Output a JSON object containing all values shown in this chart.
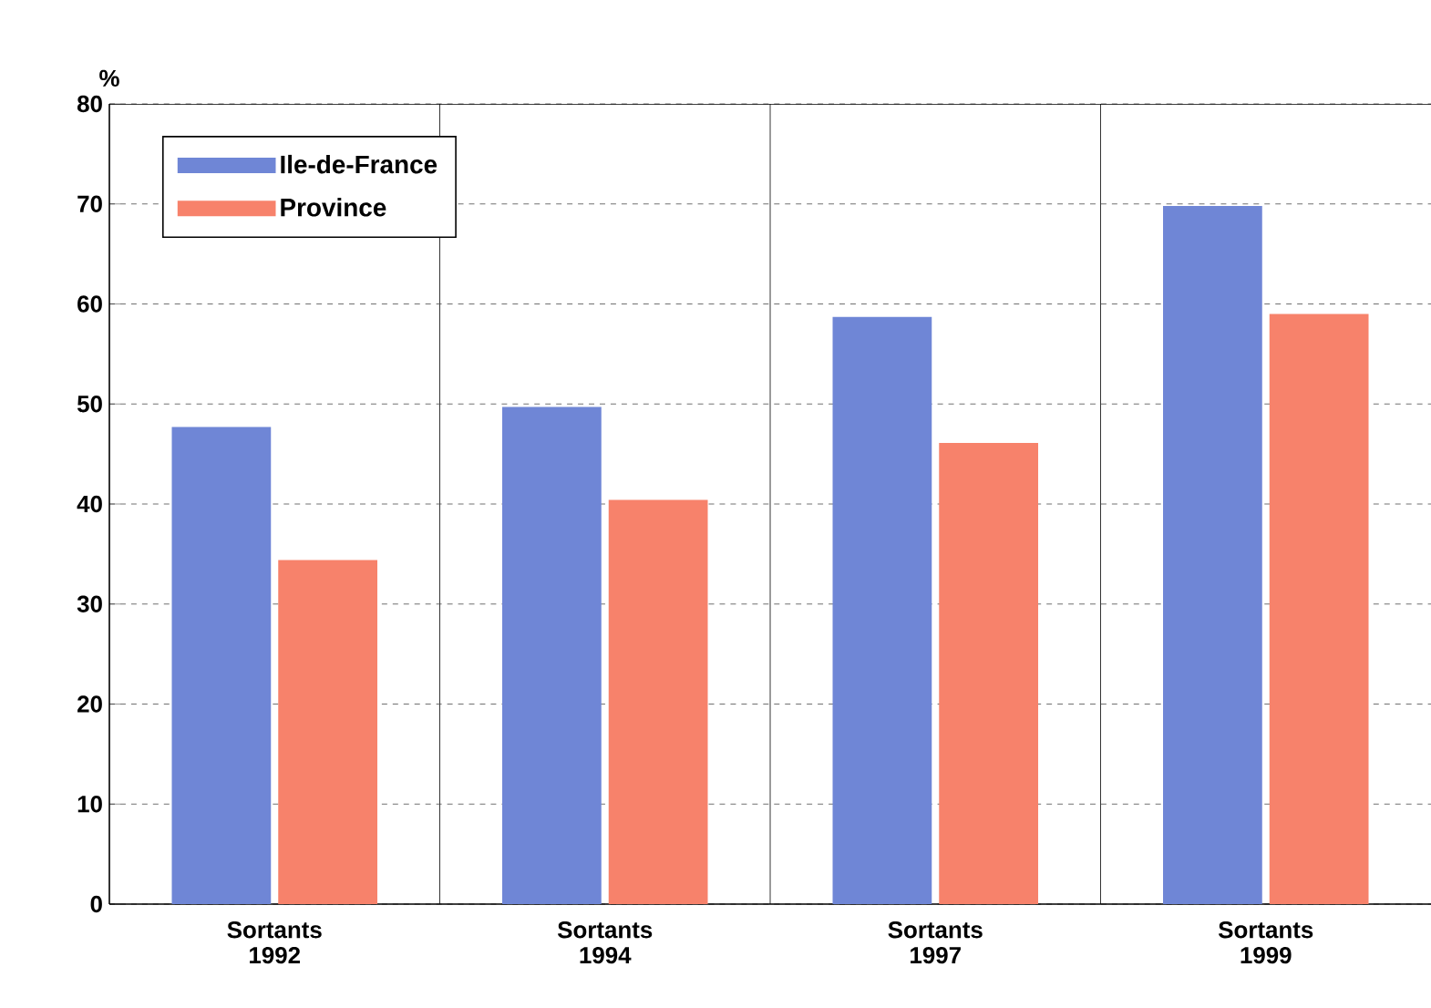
{
  "chart_data": {
    "type": "bar",
    "ylabel": "%",
    "categories": [
      "Sortants 1992",
      "Sortants 1994",
      "Sortants 1997",
      "Sortants 1999"
    ],
    "series": [
      {
        "name": "Ile-de-France",
        "color": "#6f86d6",
        "values": [
          47.7,
          49.7,
          58.7,
          69.8
        ]
      },
      {
        "name": "Province",
        "color": "#f7826b",
        "values": [
          34.4,
          40.4,
          46.1,
          59.0
        ]
      }
    ],
    "ylim": [
      0,
      80
    ],
    "yticks": [
      0,
      10,
      20,
      30,
      40,
      50,
      60,
      70,
      80
    ],
    "grid": "y",
    "legend": "top left"
  }
}
